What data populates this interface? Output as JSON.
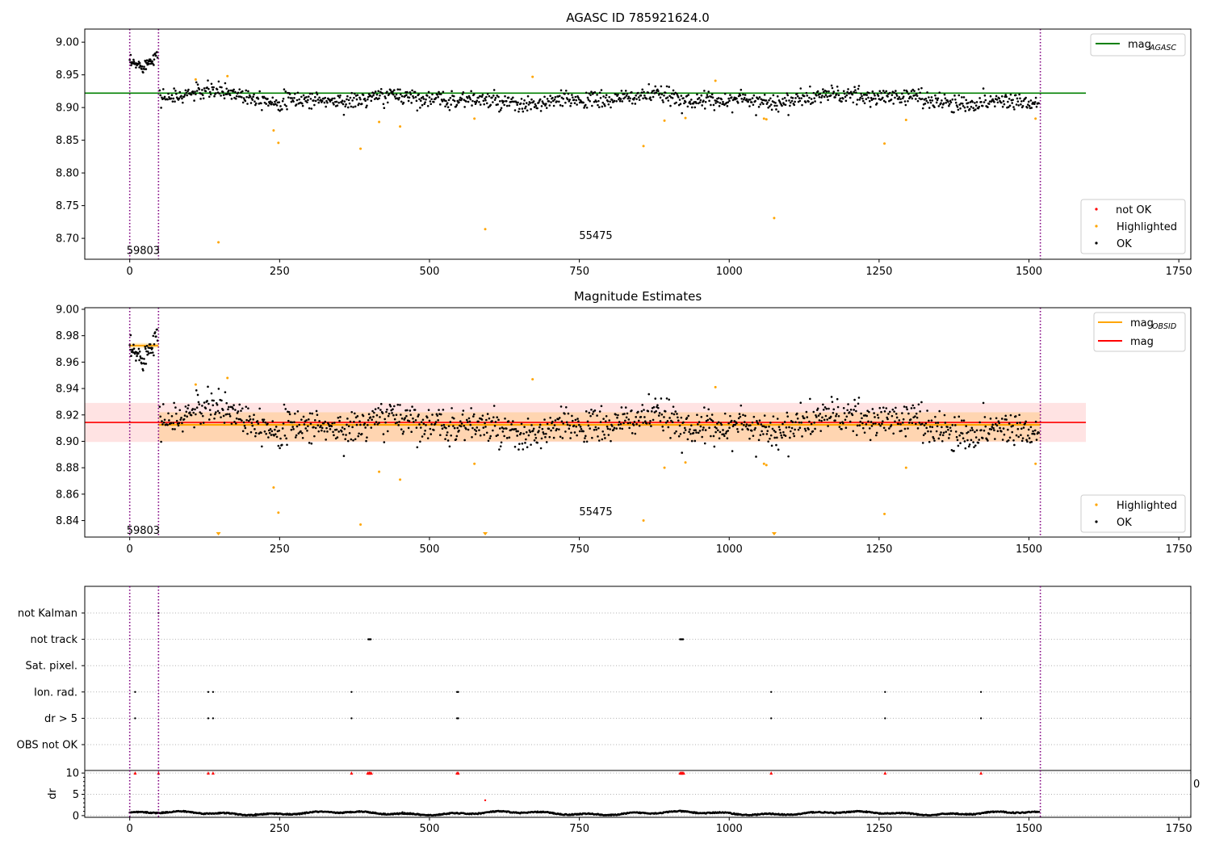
{
  "chart_data": [
    {
      "type": "scatter",
      "title": "AGASC ID 785921624.0",
      "xlim": [
        -75,
        1770
      ],
      "ylim": [
        8.668,
        9.02
      ],
      "xticks": [
        0,
        250,
        500,
        750,
        1000,
        1250,
        1500,
        1750
      ],
      "yticks": [
        8.7,
        8.75,
        8.8,
        8.85,
        8.9,
        8.95,
        9.0
      ],
      "ytick_labels": [
        "8.70",
        "8.75",
        "8.80",
        "8.85",
        "8.90",
        "8.95",
        "9.00"
      ],
      "obs_boundaries": [
        0,
        48,
        1519
      ],
      "obs_labels": [
        {
          "text": "59803",
          "x": 0,
          "y": 8.682
        },
        {
          "text": "55475",
          "x": 755,
          "y": 8.705
        }
      ],
      "reference_line": {
        "name": "mag",
        "subscript": "AGASC",
        "y": 8.922,
        "x_range": [
          -75,
          1595
        ],
        "color": "#008000"
      },
      "highlighted": [
        [
          110,
          8.943
        ],
        [
          148,
          8.694
        ],
        [
          163,
          8.948
        ],
        [
          240,
          8.865
        ],
        [
          248,
          8.846
        ],
        [
          385,
          8.837
        ],
        [
          416,
          8.878
        ],
        [
          451,
          8.871
        ],
        [
          575,
          8.883
        ],
        [
          593,
          8.714
        ],
        [
          672,
          8.947
        ],
        [
          857,
          8.841
        ],
        [
          892,
          8.88
        ],
        [
          927,
          8.884
        ],
        [
          977,
          8.941
        ],
        [
          1058,
          8.883
        ],
        [
          1062,
          8.882
        ],
        [
          1075,
          8.731
        ],
        [
          1259,
          8.845
        ],
        [
          1295,
          8.881
        ],
        [
          1511,
          8.883
        ]
      ],
      "not_ok": [],
      "legend_top": {
        "entries": [
          "mag"
        ],
        "subscripts": [
          "AGASC"
        ],
        "colors": [
          "#008000"
        ],
        "placement": "top-right"
      },
      "legend_bottom": {
        "entries": [
          "not OK",
          "Highlighted",
          "OK"
        ],
        "colors": [
          "#ff0000",
          "#ffa500",
          "#000000"
        ],
        "placement": "bottom-right"
      }
    },
    {
      "type": "scatter",
      "title": "Magnitude Estimates",
      "xlim": [
        -75,
        1770
      ],
      "ylim": [
        8.8275,
        9.0012
      ],
      "xticks": [
        0,
        250,
        500,
        750,
        1000,
        1250,
        1500,
        1750
      ],
      "yticks": [
        8.84,
        8.86,
        8.88,
        8.9,
        8.92,
        8.94,
        8.96,
        8.98,
        9.0
      ],
      "ytick_labels": [
        "8.84",
        "8.86",
        "8.88",
        "8.90",
        "8.92",
        "8.94",
        "8.96",
        "8.98",
        "9.00"
      ],
      "obs_boundaries": [
        0,
        48,
        1519
      ],
      "obs_labels": [
        {
          "text": "59803",
          "x": 0,
          "y": 8.833
        },
        {
          "text": "55475",
          "x": 755,
          "y": 8.847
        }
      ],
      "mag_line": {
        "name": "mag",
        "y": 8.9143,
        "x_range": [
          -75,
          1595
        ],
        "color": "#ff0000",
        "band": [
          8.8995,
          8.9291
        ]
      },
      "mag_obsid": [
        {
          "x_range": [
            0,
            48
          ],
          "y": 8.9725,
          "band": [
            8.9705,
            8.9745
          ]
        },
        {
          "x_range": [
            48,
            1519
          ],
          "y": 8.9125,
          "band": [
            8.9,
            8.922
          ]
        }
      ],
      "highlighted": [
        [
          110,
          8.943
        ],
        [
          163,
          8.948
        ],
        [
          240,
          8.865
        ],
        [
          248,
          8.846
        ],
        [
          385,
          8.837
        ],
        [
          416,
          8.877
        ],
        [
          451,
          8.871
        ],
        [
          575,
          8.883
        ],
        [
          672,
          8.947
        ],
        [
          857,
          8.84
        ],
        [
          892,
          8.88
        ],
        [
          927,
          8.884
        ],
        [
          977,
          8.941
        ],
        [
          1058,
          8.883
        ],
        [
          1062,
          8.882
        ],
        [
          1259,
          8.845
        ],
        [
          1295,
          8.88
        ],
        [
          1511,
          8.883
        ]
      ],
      "below_limit": [
        148,
        593,
        1075
      ],
      "legend_top": {
        "entries": [
          "mag",
          "mag"
        ],
        "subscripts": [
          "OBSID",
          ""
        ],
        "colors": [
          "#ffa500",
          "#ff0000"
        ],
        "placement": "top-right"
      },
      "legend_bottom": {
        "entries": [
          "Highlighted",
          "OK"
        ],
        "colors": [
          "#ffa500",
          "#000000"
        ],
        "placement": "bottom-right"
      }
    },
    {
      "type": "scatter",
      "title": "",
      "xlim": [
        -75,
        1770
      ],
      "xticks": [
        0,
        250,
        500,
        750,
        1000,
        1250,
        1500,
        1750
      ],
      "obs_boundaries": [
        0,
        48,
        1519
      ],
      "flag_rows": [
        "not Kalman",
        "not track",
        "Sat. pixel.",
        "Ion. rad.",
        "dr > 5",
        "OBS not OK"
      ],
      "flags": {
        "not Kalman": [
          48
        ],
        "not track": [
          398,
          399,
          400,
          401,
          402,
          918,
          919,
          920,
          921,
          922,
          923
        ],
        "Sat. pixel.": [],
        "Ion. rad.": [
          9,
          131,
          139,
          370,
          546,
          548,
          1070,
          1260,
          1420
        ],
        "dr > 5": [
          9,
          131,
          139,
          370,
          546,
          548,
          1070,
          1260,
          1420
        ],
        "OBS not OK": []
      },
      "dr_ylabel": "dr",
      "dr_ylim": [
        -0.4,
        10.6
      ],
      "dr_yticks": [
        0,
        5,
        10
      ],
      "dr_clipped": [
        9,
        48,
        131,
        139,
        370,
        397,
        399,
        400,
        401,
        403,
        546,
        548,
        918,
        920,
        921,
        922,
        924,
        1070,
        1260,
        1420
      ],
      "dr_outliers": [
        [
          48,
          0.6
        ],
        [
          210,
          0.4
        ],
        [
          455,
          0.8
        ],
        [
          593,
          3.6
        ]
      ],
      "dr_stray_label": "0"
    }
  ]
}
